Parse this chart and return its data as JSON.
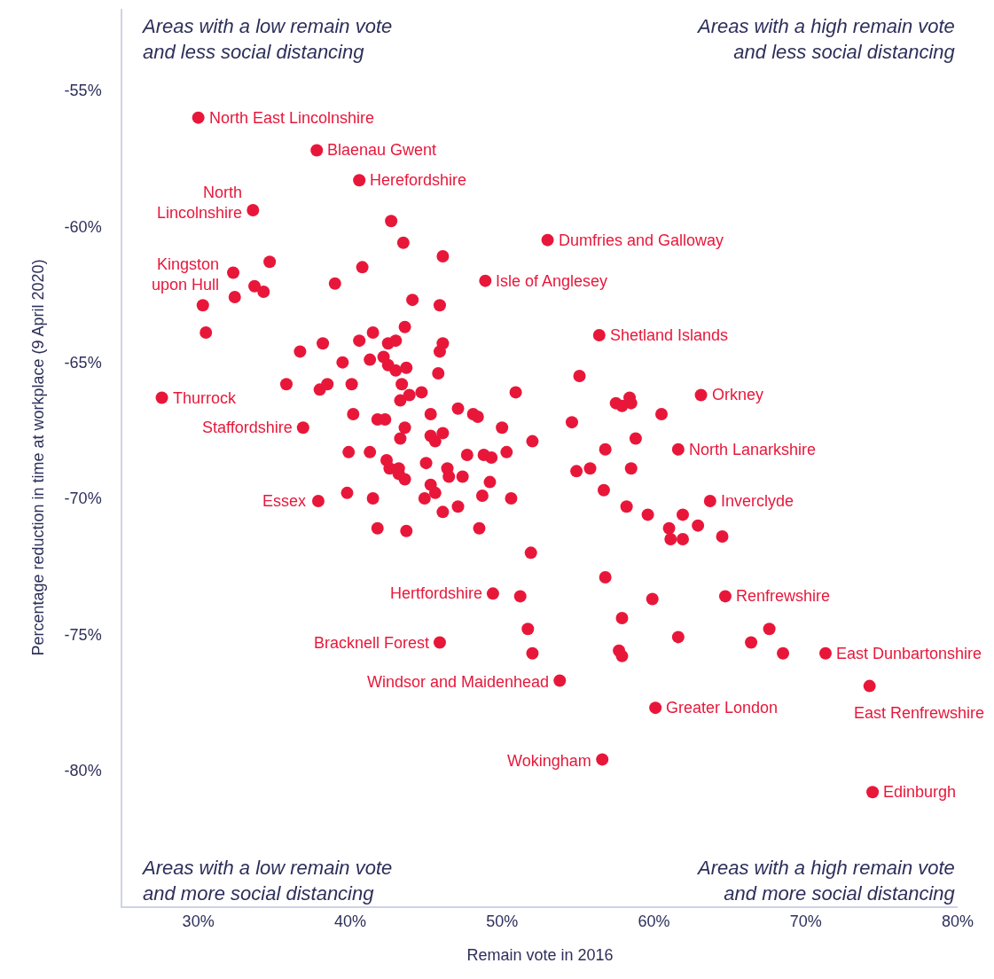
{
  "chart_data": {
    "type": "scatter",
    "xlabel": "Remain vote in 2016",
    "ylabel": "Percentage reduction in time at workplace (9 April 2020)",
    "xlim": [
      25,
      80
    ],
    "ylim": [
      -85,
      -52
    ],
    "xticks": [
      {
        "value": 30,
        "label": "30%"
      },
      {
        "value": 40,
        "label": "40%"
      },
      {
        "value": 50,
        "label": "50%"
      },
      {
        "value": 60,
        "label": "60%"
      },
      {
        "value": 70,
        "label": "70%"
      },
      {
        "value": 80,
        "label": "80%"
      }
    ],
    "yticks": [
      {
        "value": -55,
        "label": "-55%"
      },
      {
        "value": -60,
        "label": "-60%"
      },
      {
        "value": -65,
        "label": "-65%"
      },
      {
        "value": -70,
        "label": "-70%"
      },
      {
        "value": -75,
        "label": "-75%"
      },
      {
        "value": -80,
        "label": "-80%"
      }
    ],
    "marker": "circle",
    "color": "#e8173a",
    "x": [
      30.0,
      37.8,
      40.6,
      33.6,
      42.7,
      43.5,
      46.1,
      53.0,
      32.3,
      34.7,
      33.7,
      34.3,
      32.4,
      30.3,
      30.5,
      40.8,
      39.0,
      48.9,
      44.1,
      45.9,
      56.4,
      43.6,
      41.5,
      40.6,
      42.5,
      43.0,
      38.2,
      36.7,
      39.5,
      41.3,
      42.2,
      42.5,
      43.0,
      43.7,
      35.8,
      38.0,
      38.5,
      40.1,
      43.4,
      43.3,
      43.9,
      44.7,
      27.6,
      40.2,
      41.8,
      42.3,
      43.6,
      43.3,
      36.9,
      46.1,
      45.9,
      45.8,
      55.1,
      50.9,
      47.1,
      45.3,
      48.1,
      48.4,
      57.5,
      57.9,
      58.4,
      58.5,
      60.5,
      54.6,
      50.0,
      52.0,
      58.8,
      45.3,
      46.1,
      45.6,
      63.1,
      61.6,
      56.8,
      45.0,
      47.7,
      48.8,
      49.3,
      50.3,
      54.9,
      55.8,
      58.5,
      56.7,
      46.4,
      46.5,
      47.4,
      45.3,
      45.6,
      44.9,
      49.2,
      48.7,
      50.6,
      46.1,
      47.1,
      43.7,
      48.5,
      58.2,
      59.6,
      61.9,
      61.0,
      61.1,
      61.9,
      51.9,
      56.8,
      49.4,
      51.2,
      59.9,
      57.9,
      51.7,
      61.6,
      45.9,
      52.0,
      57.7,
      57.9,
      53.8,
      60.1,
      56.6,
      39.9,
      41.3,
      42.4,
      42.6,
      43.2,
      43.2,
      43.6,
      37.9,
      39.8,
      41.5,
      41.8,
      63.7,
      62.9,
      64.5,
      64.7,
      67.6,
      66.4,
      68.5,
      71.3,
      74.2,
      74.4
    ],
    "values": [
      -56.0,
      -57.2,
      -58.3,
      -59.4,
      -59.8,
      -60.6,
      -61.1,
      -60.5,
      -61.7,
      -61.3,
      -62.2,
      -62.4,
      -62.6,
      -62.9,
      -63.9,
      -61.5,
      -62.1,
      -62.0,
      -62.7,
      -62.9,
      -64.0,
      -63.7,
      -63.9,
      -64.2,
      -64.3,
      -64.2,
      -64.3,
      -64.6,
      -65.0,
      -64.9,
      -64.8,
      -65.1,
      -65.3,
      -65.2,
      -65.8,
      -66.0,
      -65.8,
      -65.8,
      -65.8,
      -66.4,
      -66.2,
      -66.1,
      -66.3,
      -66.9,
      -67.1,
      -67.1,
      -67.4,
      -67.8,
      -67.4,
      -64.3,
      -64.6,
      -65.4,
      -65.5,
      -66.1,
      -66.7,
      -66.9,
      -66.9,
      -67.0,
      -66.5,
      -66.6,
      -66.3,
      -66.5,
      -66.9,
      -67.2,
      -67.4,
      -67.9,
      -67.8,
      -67.7,
      -67.6,
      -67.9,
      -66.2,
      -68.2,
      -68.2,
      -68.7,
      -68.4,
      -68.4,
      -68.5,
      -68.3,
      -69.0,
      -68.9,
      -68.9,
      -69.7,
      -68.9,
      -69.2,
      -69.2,
      -69.5,
      -69.8,
      -70.0,
      -69.4,
      -69.9,
      -70.0,
      -70.5,
      -70.3,
      -71.2,
      -71.1,
      -70.3,
      -70.6,
      -70.6,
      -71.1,
      -71.5,
      -71.5,
      -72.0,
      -72.9,
      -73.5,
      -73.6,
      -73.7,
      -74.4,
      -74.8,
      -75.1,
      -75.3,
      -75.7,
      -75.6,
      -75.8,
      -76.7,
      -77.7,
      -79.6,
      -68.3,
      -68.3,
      -68.6,
      -68.9,
      -68.9,
      -69.1,
      -69.3,
      -70.1,
      -69.8,
      -70.0,
      -71.1,
      -70.1,
      -71.0,
      -71.4,
      -73.6,
      -74.8,
      -75.3,
      -75.7,
      -75.7,
      -76.9,
      -80.8
    ],
    "annotations": [
      {
        "text": "North East Lincolnshire",
        "x": 30.0,
        "y": -56.0
      },
      {
        "text": "Blaenau Gwent",
        "x": 37.8,
        "y": -57.2
      },
      {
        "text": "Herefordshire",
        "x": 40.6,
        "y": -58.3
      },
      {
        "text": "North\nLincolnshire",
        "x": 33.6,
        "y": -59.4
      },
      {
        "text": "Dumfries and Galloway",
        "x": 53.0,
        "y": -60.5
      },
      {
        "text": "Kingston\nupon Hull",
        "x": 32.3,
        "y": -61.7
      },
      {
        "text": "Isle of Anglesey",
        "x": 48.9,
        "y": -62.0
      },
      {
        "text": "Shetland Islands",
        "x": 56.4,
        "y": -64.0
      },
      {
        "text": "Thurrock",
        "x": 27.6,
        "y": -66.3
      },
      {
        "text": "Orkney",
        "x": 63.1,
        "y": -66.2
      },
      {
        "text": "Staffordshire",
        "x": 36.9,
        "y": -67.4
      },
      {
        "text": "North Lanarkshire",
        "x": 61.6,
        "y": -68.2
      },
      {
        "text": "Essex",
        "x": 37.9,
        "y": -70.1
      },
      {
        "text": "Inverclyde",
        "x": 63.7,
        "y": -70.1
      },
      {
        "text": "Hertfordshire",
        "x": 49.4,
        "y": -73.5
      },
      {
        "text": "Renfrewshire",
        "x": 64.7,
        "y": -73.6
      },
      {
        "text": "Bracknell Forest",
        "x": 45.9,
        "y": -75.3
      },
      {
        "text": "East Dunbartonshire",
        "x": 71.3,
        "y": -75.7
      },
      {
        "text": "Windsor and Maidenhead",
        "x": 53.8,
        "y": -76.7
      },
      {
        "text": "East Renfrewshire",
        "x": 74.2,
        "y": -76.9
      },
      {
        "text": "Greater London",
        "x": 60.1,
        "y": -77.7
      },
      {
        "text": "Wokingham",
        "x": 56.6,
        "y": -79.6
      },
      {
        "text": "Edinburgh",
        "x": 74.4,
        "y": -80.8
      },
      "Areas with a low remain vote\nand less social distancing",
      "Areas with a high remain vote\nand less social distancing",
      "Areas with a low remain vote\nand more social distancing",
      "Areas with a high remain vote\nand more social distancing"
    ]
  }
}
